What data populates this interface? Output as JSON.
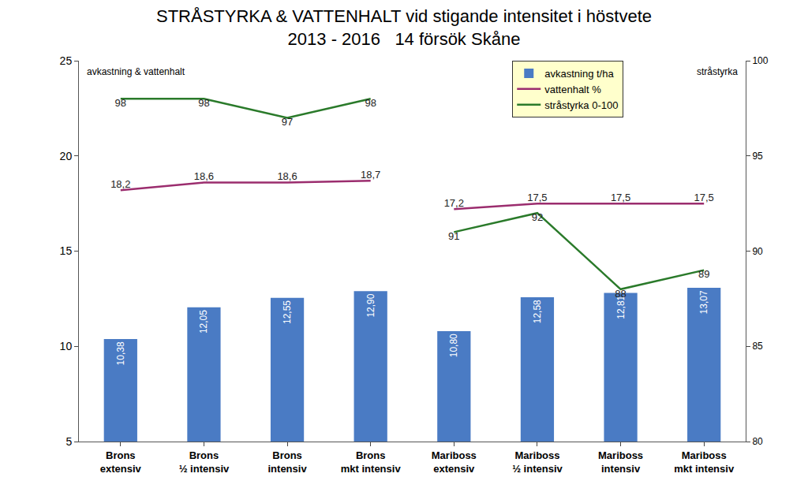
{
  "chart_data": {
    "type": "bar",
    "title": "STRÅSTYRKA & VATTENHALT vid stigande intensitet i höstvete\n2013 - 2016   14 försök Skåne",
    "ylabel": "avkastning & vattenhalt",
    "y2label": "stråstyrka",
    "categories": [
      "Brons\nextensiv",
      "Brons\n½ intensiv",
      "Brons\nintensiv",
      "Brons\nmkt intensiv",
      "Mariboss\nextensiv",
      "Mariboss\n½ intensiv",
      "Mariboss\nintensiv",
      "Mariboss\nmkt intensiv"
    ],
    "series": [
      {
        "name": "avkastning t/ha",
        "type": "bar",
        "color": "#4a7bc4",
        "values": [
          10.38,
          12.05,
          12.55,
          12.9,
          10.8,
          12.58,
          12.81,
          13.07
        ],
        "value_labels": [
          "10,38",
          "12,05",
          "12,55",
          "12,90",
          "10,80",
          "12,58",
          "12,81",
          "13,07"
        ]
      },
      {
        "name": "vattenhalt %",
        "type": "line",
        "color": "#9b2d6e",
        "values": [
          18.2,
          18.6,
          18.6,
          18.7,
          17.2,
          17.5,
          17.5,
          17.5
        ],
        "value_labels": [
          "18,2",
          "18,6",
          "18,6",
          "18,7",
          "17,2",
          "17,5",
          "17,5",
          "17,5"
        ]
      },
      {
        "name": "stråstyrka 0-100",
        "type": "line",
        "color": "#2a7a2a",
        "axis": "y2",
        "values": [
          98,
          98,
          97,
          98,
          91,
          92,
          88,
          89
        ]
      }
    ],
    "ylim": [
      5,
      25
    ],
    "yticks": [
      5,
      10,
      15,
      20,
      25
    ],
    "y2lim": [
      80,
      100
    ],
    "y2ticks": [
      80,
      85,
      90,
      95,
      100
    ],
    "grid": false,
    "legend": "upper right",
    "data_labels": true
  }
}
